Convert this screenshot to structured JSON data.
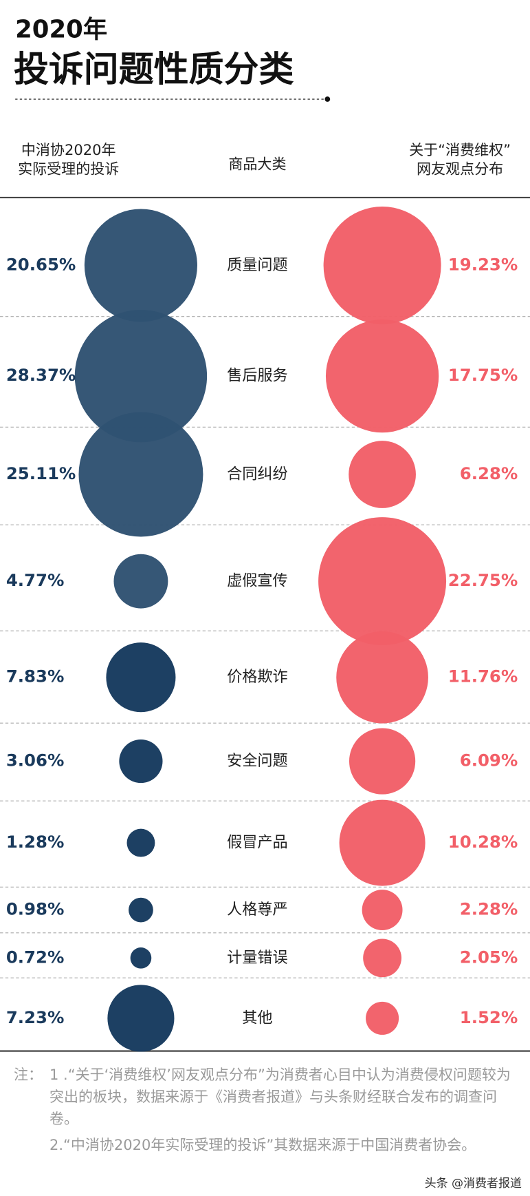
{
  "chart_data": {
    "type": "bubble",
    "title": "投诉问题性质分类",
    "subtitle": "2020年",
    "category_label": "商品大类",
    "categories": [
      "质量问题",
      "售后服务",
      "合同纠纷",
      "虚假宣传",
      "价格欺诈",
      "安全问题",
      "假冒产品",
      "人格尊严",
      "计量错误",
      "其他"
    ],
    "series": [
      {
        "name": "中消协2020年\n实际受理的投诉",
        "color": "#1a3a5c",
        "colors": [
          "#2f5272",
          "#2f5272",
          "#2f5272",
          "#2f5272",
          "#163a5e",
          "#163a5e",
          "#163a5e",
          "#163a5e",
          "#163a5e",
          "#163a5e"
        ],
        "values": [
          20.65,
          28.37,
          25.11,
          4.77,
          7.83,
          3.06,
          1.28,
          0.98,
          0.72,
          7.23
        ],
        "value_labels": [
          "20.65%",
          "28.37%",
          "25.11%",
          "4.77%",
          "7.83%",
          "3.06%",
          "1.28%",
          "0.98%",
          "0.72%",
          "7.23%"
        ]
      },
      {
        "name": "关于“消费维权”\n网友观点分布",
        "color": "#f25f68",
        "values": [
          19.23,
          17.75,
          6.28,
          22.75,
          11.76,
          6.09,
          10.28,
          2.28,
          2.05,
          1.52
        ],
        "value_labels": [
          "19.23%",
          "17.75%",
          "6.28%",
          "22.75%",
          "11.76%",
          "6.09%",
          "10.28%",
          "2.28%",
          "2.05%",
          "1.52%"
        ]
      }
    ],
    "notes": [
      "1 .“关于‘消费维权’网友观点分布”为消费者心目中认为消费侵权问题较为突出的板块，数据来源于《消费者报道》与头条财经联合发布的调查问卷。",
      "2.“中消协2020年实际受理的投诉”其数据来源于中国消费者协会。"
    ],
    "notes_label": "注：",
    "credit": "头条 @消费者报道"
  }
}
